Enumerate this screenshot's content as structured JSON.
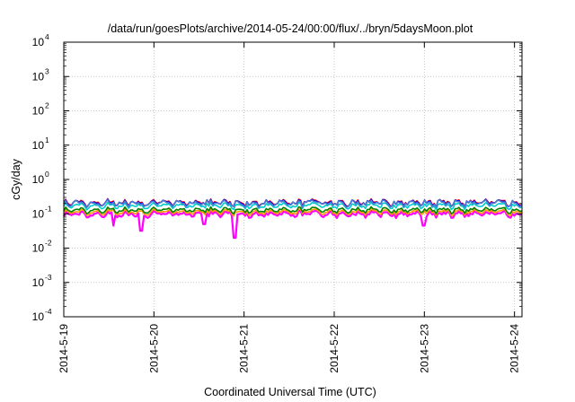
{
  "chart_data": {
    "type": "line",
    "title": "/data/run/goesPlots/archive/2014-05-24/00:00/flux/../bryn/5daysMoon.plot",
    "xlabel": "Coordinated Universal Time (UTC)",
    "ylabel": "cGy/day",
    "x_ticks": [
      "2014-5-19",
      "2014-5-20",
      "2014-5-21",
      "2014-5-22",
      "2014-5-23",
      "2014-5-24"
    ],
    "x_range": [
      "2014-05-19 00:00",
      "2014-05-24 02:00"
    ],
    "x_unit": "days since 2014-05-19 00:00 UTC",
    "y_scale": "log",
    "ylim": [
      0.0001,
      10000
    ],
    "y_ticks": [
      {
        "base": "10",
        "exp": "-4"
      },
      {
        "base": "10",
        "exp": "-3"
      },
      {
        "base": "10",
        "exp": "-2"
      },
      {
        "base": "10",
        "exp": "-1"
      },
      {
        "base": "10",
        "exp": "0"
      },
      {
        "base": "10",
        "exp": "1"
      },
      {
        "base": "10",
        "exp": "2"
      },
      {
        "base": "10",
        "exp": "3"
      },
      {
        "base": "10",
        "exp": "4"
      }
    ],
    "grid": true,
    "series": [
      {
        "color": "#ff00ff",
        "base": 0.085,
        "amp": 0.12,
        "dips": [
          [
            0.86,
            0.032
          ],
          [
            1.9,
            0.02
          ],
          [
            0.55,
            0.045
          ],
          [
            4.0,
            0.045
          ],
          [
            1.55,
            0.05
          ]
        ]
      },
      {
        "color": "#ff9900",
        "base": 0.098,
        "amp": 0.1,
        "dips": []
      },
      {
        "color": "#008000",
        "base": 0.112,
        "amp": 0.1,
        "dips": []
      },
      {
        "color": "#00cccc",
        "base": 0.15,
        "amp": 0.11,
        "dips": []
      },
      {
        "color": "#ff0000",
        "base": 0.185,
        "amp": 0.13,
        "dips": []
      },
      {
        "color": "#0000ff",
        "base": 0.18,
        "amp": 0.13,
        "dips": []
      },
      {
        "color": "#4a7fd0",
        "base": 0.175,
        "amp": 0.13,
        "dips": []
      }
    ]
  }
}
